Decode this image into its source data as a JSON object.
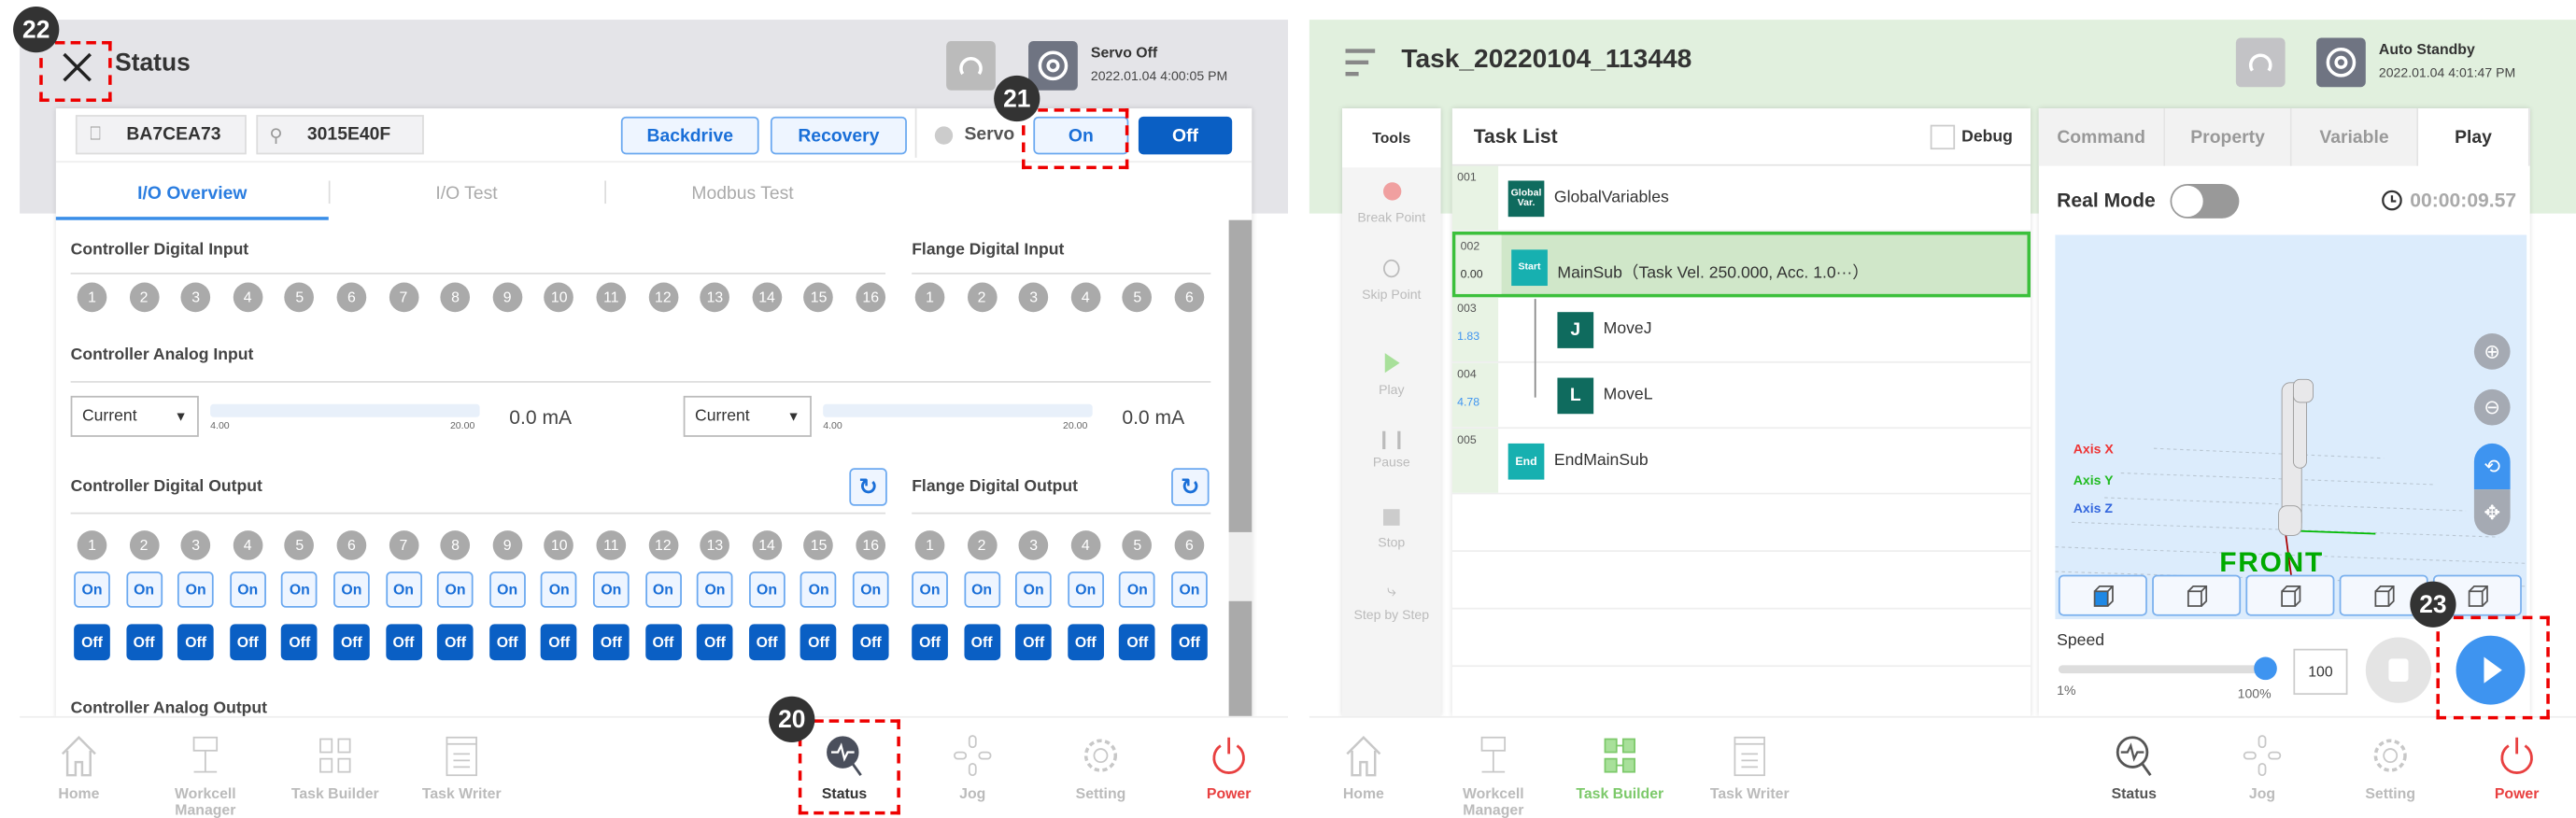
{
  "left": {
    "header": {
      "title": "Status",
      "servo_status": "Servo Off",
      "datetime": "2022.01.04 4:00:05 PM"
    },
    "serials": [
      "BA7CEA73",
      "3015E40F"
    ],
    "buttons": {
      "backdrive": "Backdrive",
      "recovery": "Recovery",
      "servo_label": "Servo",
      "on": "On",
      "off": "Off"
    },
    "tabs": [
      {
        "label": "I/O Overview",
        "active": true
      },
      {
        "label": "I/O Test"
      },
      {
        "label": "Modbus Test"
      }
    ],
    "sections": {
      "cdi": "Controller Digital Input",
      "fdi": "Flange Digital Input",
      "cai": "Controller Analog Input",
      "cdo": "Controller Digital Output",
      "fdo": "Flange Digital Output",
      "cao": "Controller Analog Output"
    },
    "analog_inputs": [
      {
        "mode": "Current",
        "min": "4.00",
        "max": "20.00",
        "value": "0.0 mA"
      },
      {
        "mode": "Current",
        "min": "4.00",
        "max": "20.00",
        "value": "0.0 mA"
      }
    ],
    "controller_channels": [
      "1",
      "2",
      "3",
      "4",
      "5",
      "6",
      "7",
      "8",
      "9",
      "10",
      "11",
      "12",
      "13",
      "14",
      "15",
      "16"
    ],
    "flange_channels": [
      "1",
      "2",
      "3",
      "4",
      "5",
      "6"
    ],
    "on_label": "On",
    "off_label": "Off"
  },
  "right": {
    "header": {
      "title": "Task_20220104_113448",
      "servo_status": "Auto Standby",
      "datetime": "2022.01.04 4:01:47 PM"
    },
    "tools": {
      "title": "Tools",
      "items": [
        "Break Point",
        "Skip Point",
        "Play",
        "Pause",
        "Stop",
        "Step by Step"
      ]
    },
    "task_list": {
      "title": "Task List",
      "debug": "Debug",
      "rows": [
        {
          "line": "001",
          "time": "",
          "block": "Global Var.",
          "label": "GlobalVariables",
          "color": "#0f6b5e"
        },
        {
          "line": "002",
          "time": "0.00",
          "block": "Start",
          "label": "MainSub（Task Vel. 250.000, Acc. 1.0···）",
          "color": "#17b0b0",
          "selected": true
        },
        {
          "line": "003",
          "time": "1.83",
          "block": "J",
          "label": "MoveJ",
          "color": "#0f6b5e"
        },
        {
          "line": "004",
          "time": "4.78",
          "block": "L",
          "label": "MoveL",
          "color": "#0f6b5e"
        },
        {
          "line": "005",
          "time": "",
          "block": "End",
          "label": "EndMainSub",
          "color": "#17b0b0"
        }
      ]
    },
    "tabs": [
      {
        "label": "Command"
      },
      {
        "label": "Property"
      },
      {
        "label": "Variable"
      },
      {
        "label": "Play",
        "active": true
      }
    ],
    "real_mode": {
      "label": "Real Mode",
      "on": false
    },
    "elapsed": "00:00:09.57",
    "axes": {
      "x": "Axis X",
      "y": "Axis Y",
      "z": "Axis Z"
    },
    "view_label": "FRONT",
    "speed": {
      "label": "Speed",
      "min": "1%",
      "max": "100%",
      "value": "100",
      "fraction": 1.0
    }
  },
  "nav": {
    "items": [
      "Home",
      "Workcell Manager",
      "Task Builder",
      "Task Writer",
      "Status",
      "Jog",
      "Setting",
      "Power"
    ]
  },
  "badges": [
    "22",
    "21",
    "20",
    "23"
  ],
  "colors": {
    "accent": "#0a5fc4",
    "power": "#e84040",
    "task_builder_active": "#7cc96a",
    "status_header": "#e4e4e8",
    "task_header": "#e1f0de"
  }
}
